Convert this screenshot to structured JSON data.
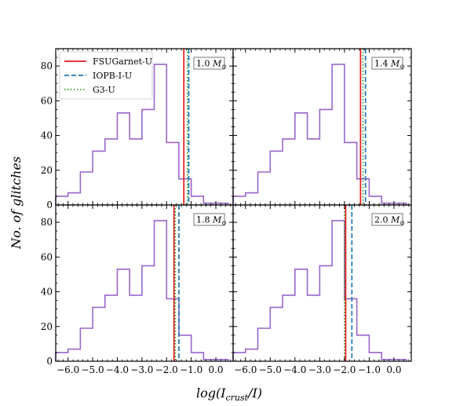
{
  "figure": {
    "ylabel": "No. of glitches",
    "xlabel_main": "log(I",
    "xlabel_sub": "crust",
    "xlabel_tail": "/I)"
  },
  "chart_data": [
    {
      "type": "histogram",
      "panel": "top-left",
      "mass_label": "1.0 M",
      "mass_symbol": "⊙",
      "bin_edges": [
        -6.5,
        -6.0,
        -5.5,
        -5.0,
        -4.5,
        -4.0,
        -3.5,
        -3.0,
        -2.5,
        -2.0,
        -1.5,
        -1.0,
        -0.5,
        0.0,
        0.5
      ],
      "counts": [
        5,
        7,
        19,
        31,
        38,
        53,
        38,
        55,
        81,
        36,
        15,
        5,
        1,
        1
      ],
      "vlines": [
        {
          "name": "FSUGarnet-U",
          "x": -1.3
        },
        {
          "name": "IOPB-I-U",
          "x": -1.1
        },
        {
          "name": "G3-U",
          "x": -1.15
        }
      ],
      "xlim": [
        -6.5,
        0.7
      ],
      "ylim": [
        0,
        90
      ],
      "show_legend": true
    },
    {
      "type": "histogram",
      "panel": "top-right",
      "mass_label": "1.4 M",
      "mass_symbol": "⊙",
      "bin_edges": [
        -6.5,
        -6.0,
        -5.5,
        -5.0,
        -4.5,
        -4.0,
        -3.5,
        -3.0,
        -2.5,
        -2.0,
        -1.5,
        -1.0,
        -0.5,
        0.0,
        0.5
      ],
      "counts": [
        5,
        7,
        19,
        31,
        38,
        53,
        38,
        55,
        81,
        36,
        15,
        5,
        1,
        1
      ],
      "vlines": [
        {
          "name": "FSUGarnet-U",
          "x": -1.35
        },
        {
          "name": "IOPB-I-U",
          "x": -1.15
        },
        {
          "name": "G3-U",
          "x": -1.25
        }
      ],
      "xlim": [
        -6.5,
        0.7
      ],
      "ylim": [
        0,
        90
      ],
      "show_legend": false
    },
    {
      "type": "histogram",
      "panel": "bottom-left",
      "mass_label": "1.8 M",
      "mass_symbol": "⊙",
      "bin_edges": [
        -6.5,
        -6.0,
        -5.5,
        -5.0,
        -4.5,
        -4.0,
        -3.5,
        -3.0,
        -2.5,
        -2.0,
        -1.5,
        -1.0,
        -0.5,
        0.0,
        0.5
      ],
      "counts": [
        5,
        7,
        19,
        31,
        38,
        53,
        38,
        55,
        81,
        36,
        15,
        5,
        1,
        1
      ],
      "vlines": [
        {
          "name": "FSUGarnet-U",
          "x": -1.7
        },
        {
          "name": "IOPB-I-U",
          "x": -1.5
        },
        {
          "name": "G3-U",
          "x": -1.65
        }
      ],
      "xlim": [
        -6.5,
        0.7
      ],
      "ylim": [
        0,
        90
      ],
      "show_legend": false
    },
    {
      "type": "histogram",
      "panel": "bottom-right",
      "mass_label": "2.0 M",
      "mass_symbol": "⊙",
      "bin_edges": [
        -6.5,
        -6.0,
        -5.5,
        -5.0,
        -4.5,
        -4.0,
        -3.5,
        -3.0,
        -2.5,
        -2.0,
        -1.5,
        -1.0,
        -0.5,
        0.0,
        0.5
      ],
      "counts": [
        5,
        7,
        19,
        31,
        38,
        53,
        38,
        55,
        81,
        36,
        15,
        5,
        1,
        1
      ],
      "vlines": [
        {
          "name": "FSUGarnet-U",
          "x": -1.95
        },
        {
          "name": "IOPB-I-U",
          "x": -1.7
        },
        {
          "name": "G3-U",
          "x": -2.0
        }
      ],
      "xlim": [
        -6.5,
        0.7
      ],
      "ylim": [
        0,
        90
      ],
      "show_legend": false
    }
  ],
  "legend": [
    {
      "name": "FSUGarnet-U",
      "color": "#e41a1c",
      "dash": "solid"
    },
    {
      "name": "IOPB-I-U",
      "color": "#1f77b4",
      "dash": "dashed"
    },
    {
      "name": "G3-U",
      "color": "#2ca02c",
      "dash": "dotted"
    }
  ],
  "colors": {
    "histogram": "#9966cc",
    "FSUGarnet-U": "#e41a1c",
    "IOPB-I-U": "#1f77b4",
    "G3-U": "#2ca02c"
  },
  "x_ticks": [
    -6.0,
    -5.0,
    -4.0,
    -3.0,
    -2.0,
    -1.0,
    0.0
  ],
  "x_tick_labels": [
    "−6.0",
    "−5.0",
    "−4.0",
    "−3.0",
    "−2.0",
    "−1.0",
    "0.0"
  ],
  "y_ticks": [
    0,
    20,
    40,
    60,
    80
  ],
  "y_tick_labels": [
    "0",
    "20",
    "40",
    "60",
    "80"
  ]
}
